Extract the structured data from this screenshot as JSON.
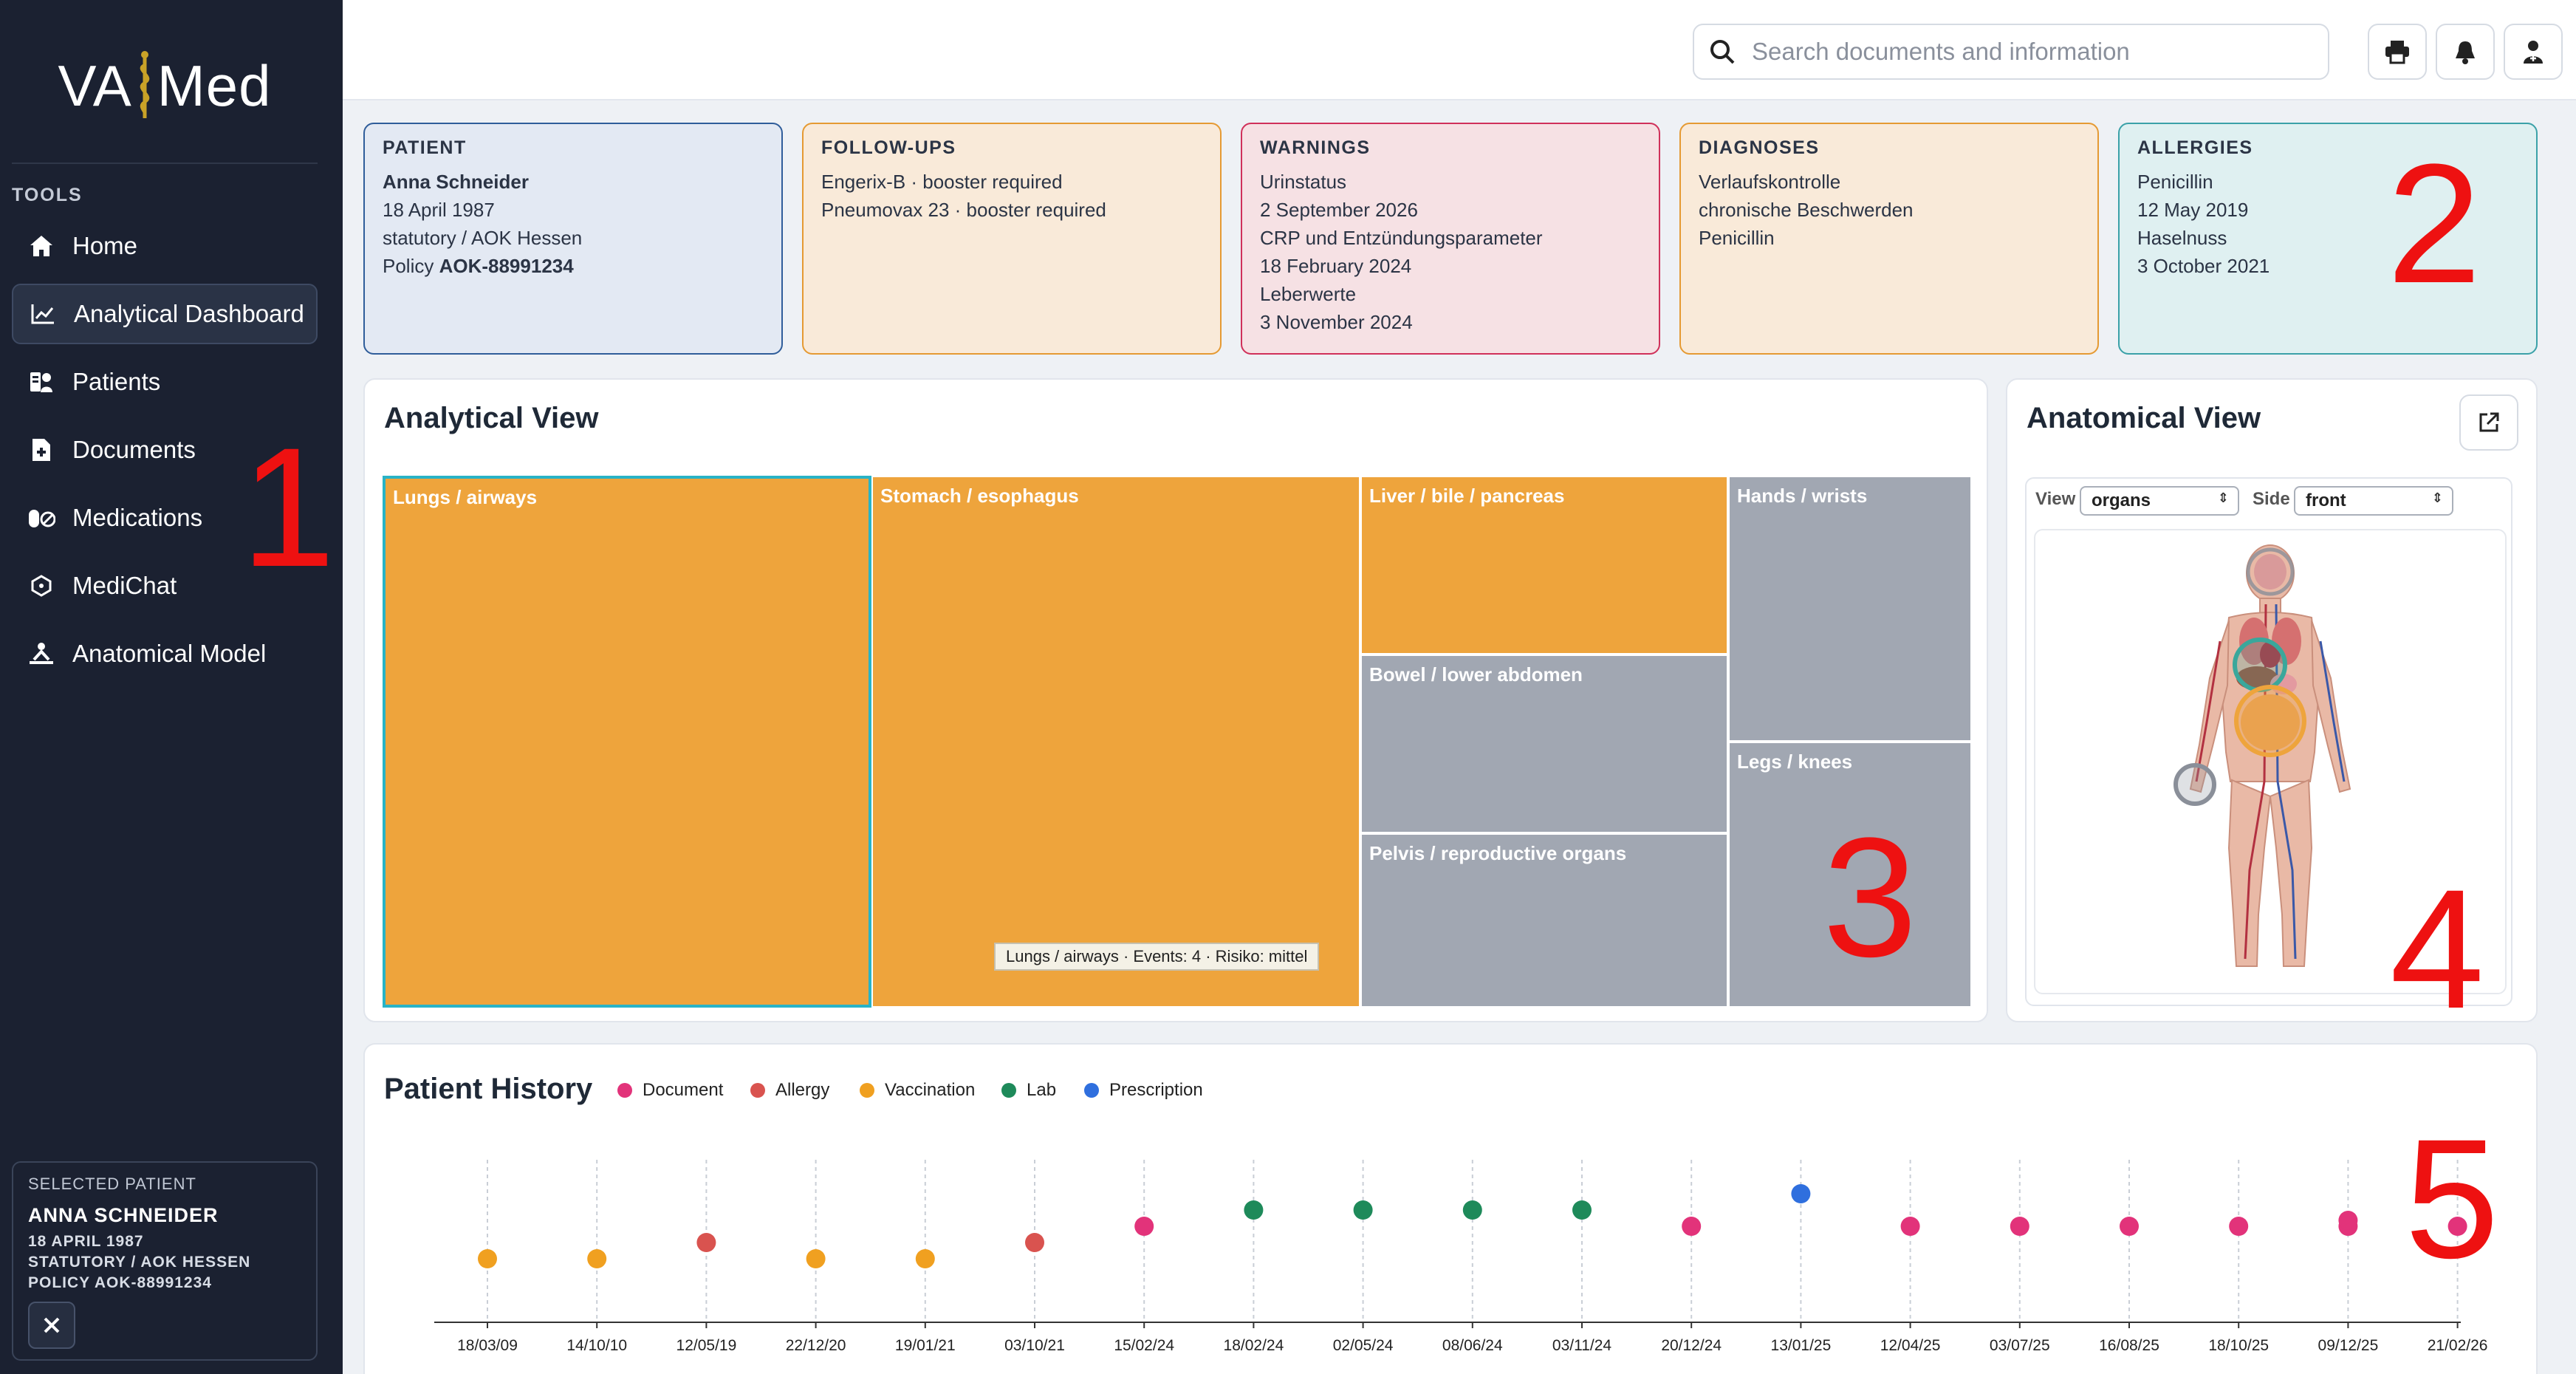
{
  "app": {
    "logo_left": "VA",
    "logo_right": "Med"
  },
  "sidebar": {
    "section_label": "TOOLS",
    "items": [
      {
        "label": "Home",
        "icon": "home-icon"
      },
      {
        "label": "Analytical Dashboard",
        "icon": "chart-line-icon",
        "active": true
      },
      {
        "label": "Patients",
        "icon": "patients-icon"
      },
      {
        "label": "Documents",
        "icon": "document-medical-icon"
      },
      {
        "label": "Medications",
        "icon": "pills-icon"
      },
      {
        "label": "MediChat",
        "icon": "chat-hexagon-icon"
      },
      {
        "label": "Anatomical Model",
        "icon": "anatomical-model-icon"
      }
    ],
    "selected_patient": {
      "title": "SELECTED PATIENT",
      "name": "ANNA SCHNEIDER",
      "dob": "18 APRIL 1987",
      "insurance": "STATUTORY / AOK HESSEN",
      "policy": "POLICY AOK-88991234",
      "close_icon": "close-icon"
    }
  },
  "topbar": {
    "search_placeholder": "Search documents and information",
    "buttons": [
      "print-icon",
      "bell-icon",
      "user-md-icon"
    ]
  },
  "cards": {
    "patient": {
      "title": "PATIENT",
      "name": "Anna Schneider",
      "dob": "18 April 1987",
      "insurance": "statutory / AOK Hessen",
      "policy_label": "Policy ",
      "policy_value": "AOK-88991234",
      "colors": {
        "bg": "#e3e9f3",
        "border": "#2f5d9a"
      }
    },
    "followups": {
      "title": "FOLLOW-UPS",
      "lines": [
        "Engerix-B · booster required",
        "Pneumovax 23 · booster required"
      ],
      "colors": {
        "bg": "#f9ead9",
        "border": "#e59a33"
      }
    },
    "warnings": {
      "title": "WARNINGS",
      "lines": [
        "Urinstatus",
        "2 September 2026",
        "CRP und Entzündungsparameter",
        "18 February 2024",
        "Leberwerte",
        "3 November 2024"
      ],
      "colors": {
        "bg": "#f6e1e4",
        "border": "#d0305a"
      }
    },
    "diagnoses": {
      "title": "DIAGNOSES",
      "lines": [
        "Verlaufskontrolle",
        "chronische Beschwerden",
        "Penicillin"
      ],
      "colors": {
        "bg": "#f9ead9",
        "border": "#e59a33"
      }
    },
    "allergies": {
      "title": "ALLERGIES",
      "lines": [
        "Penicillin",
        "12 May 2019",
        "Haselnuss",
        "3 October 2021"
      ],
      "colors": {
        "bg": "#dff0f1",
        "border": "#3ba1a8"
      }
    }
  },
  "analytical_view": {
    "title": "Analytical View",
    "cells": [
      {
        "label": "Lungs / airways",
        "color": "#eea43c",
        "highlight": true
      },
      {
        "label": "Stomach / esophagus",
        "color": "#eea43c"
      },
      {
        "label": "Liver / bile / pancreas",
        "color": "#eea43c"
      },
      {
        "label": "Bowel / lower abdomen",
        "color": "#a1a7b2"
      },
      {
        "label": "Pelvis / reproductive organs",
        "color": "#a1a7b2"
      },
      {
        "label": "Hands / wrists",
        "color": "#a1a7b2"
      },
      {
        "label": "Legs / knees",
        "color": "#a1a7b2"
      }
    ],
    "tooltip": "Lungs / airways · Events: 4 · Risiko: mittel"
  },
  "anatomical_view": {
    "title": "Anatomical View",
    "open_icon": "external-link-icon",
    "view_label": "View",
    "view_value": "organs",
    "side_label": "Side",
    "side_value": "front"
  },
  "patient_history": {
    "title": "Patient History",
    "legend": [
      {
        "label": "Document",
        "color": "#e2337a"
      },
      {
        "label": "Allergy",
        "color": "#d9534f"
      },
      {
        "label": "Vaccination",
        "color": "#f0a020"
      },
      {
        "label": "Lab",
        "color": "#1e8a5a"
      },
      {
        "label": "Prescription",
        "color": "#2f6fde"
      }
    ],
    "dates": [
      "18/03/09",
      "14/10/10",
      "12/05/19",
      "22/12/20",
      "19/01/21",
      "03/10/21",
      "15/02/24",
      "18/02/24",
      "02/05/24",
      "08/06/24",
      "03/11/24",
      "20/12/24",
      "13/01/25",
      "12/04/25",
      "03/07/25",
      "16/08/25",
      "18/10/25",
      "09/12/25",
      "21/02/26"
    ],
    "events": [
      {
        "date": "18/03/09",
        "type": "Vaccination"
      },
      {
        "date": "14/10/10",
        "type": "Vaccination"
      },
      {
        "date": "12/05/19",
        "type": "Allergy"
      },
      {
        "date": "22/12/20",
        "type": "Vaccination"
      },
      {
        "date": "19/01/21",
        "type": "Vaccination"
      },
      {
        "date": "03/10/21",
        "type": "Allergy"
      },
      {
        "date": "15/02/24",
        "type": "Document"
      },
      {
        "date": "18/02/24",
        "type": "Lab"
      },
      {
        "date": "02/05/24",
        "type": "Lab"
      },
      {
        "date": "08/06/24",
        "type": "Lab"
      },
      {
        "date": "03/11/24",
        "type": "Lab"
      },
      {
        "date": "20/12/24",
        "type": "Document"
      },
      {
        "date": "13/01/25",
        "type": "Prescription"
      },
      {
        "date": "12/04/25",
        "type": "Document"
      },
      {
        "date": "03/07/25",
        "type": "Document"
      },
      {
        "date": "16/08/25",
        "type": "Document"
      },
      {
        "date": "18/10/25",
        "type": "Document"
      },
      {
        "date": "09/12/25",
        "type": "Document"
      },
      {
        "date": "09/12/25",
        "type": "Document"
      },
      {
        "date": "21/02/26",
        "type": "Document"
      }
    ]
  },
  "annotations": [
    "1",
    "2",
    "3",
    "4",
    "5"
  ],
  "annotation_color": "#ee1111"
}
